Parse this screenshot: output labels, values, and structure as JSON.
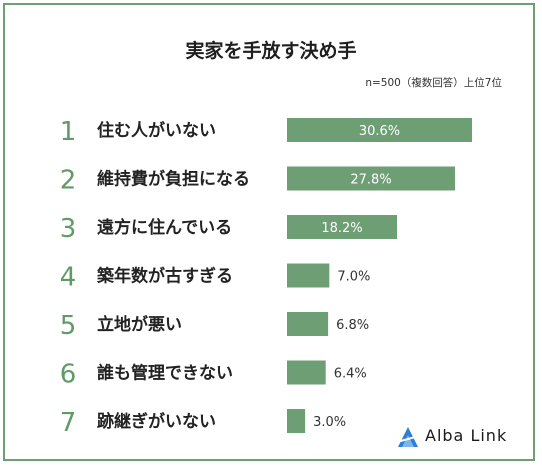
{
  "title": "実家を手放す決め手",
  "note": "n=500（複数回答）上位7位",
  "brand": "Alba Link",
  "colors": {
    "bar": "#6e9e74",
    "rank": "#5f9a67",
    "frame": "#6e9e74",
    "logo": "#2b7fd4"
  },
  "chart_data": {
    "type": "bar",
    "orientation": "horizontal",
    "ranks": [
      "1",
      "2",
      "3",
      "4",
      "5",
      "6",
      "7"
    ],
    "categories": [
      "住む人がいない",
      "維持費が負担になる",
      "遠方に住んでいる",
      "築年数が古すぎる",
      "立地が悪い",
      "誰も管理できない",
      "跡継ぎがいない"
    ],
    "values": [
      30.6,
      27.8,
      18.2,
      7.0,
      6.8,
      6.4,
      3.0
    ],
    "value_labels": [
      "30.6%",
      "27.8%",
      "18.2%",
      "7.0%",
      "6.8%",
      "6.4%",
      "3.0%"
    ],
    "unit": "%"
  }
}
